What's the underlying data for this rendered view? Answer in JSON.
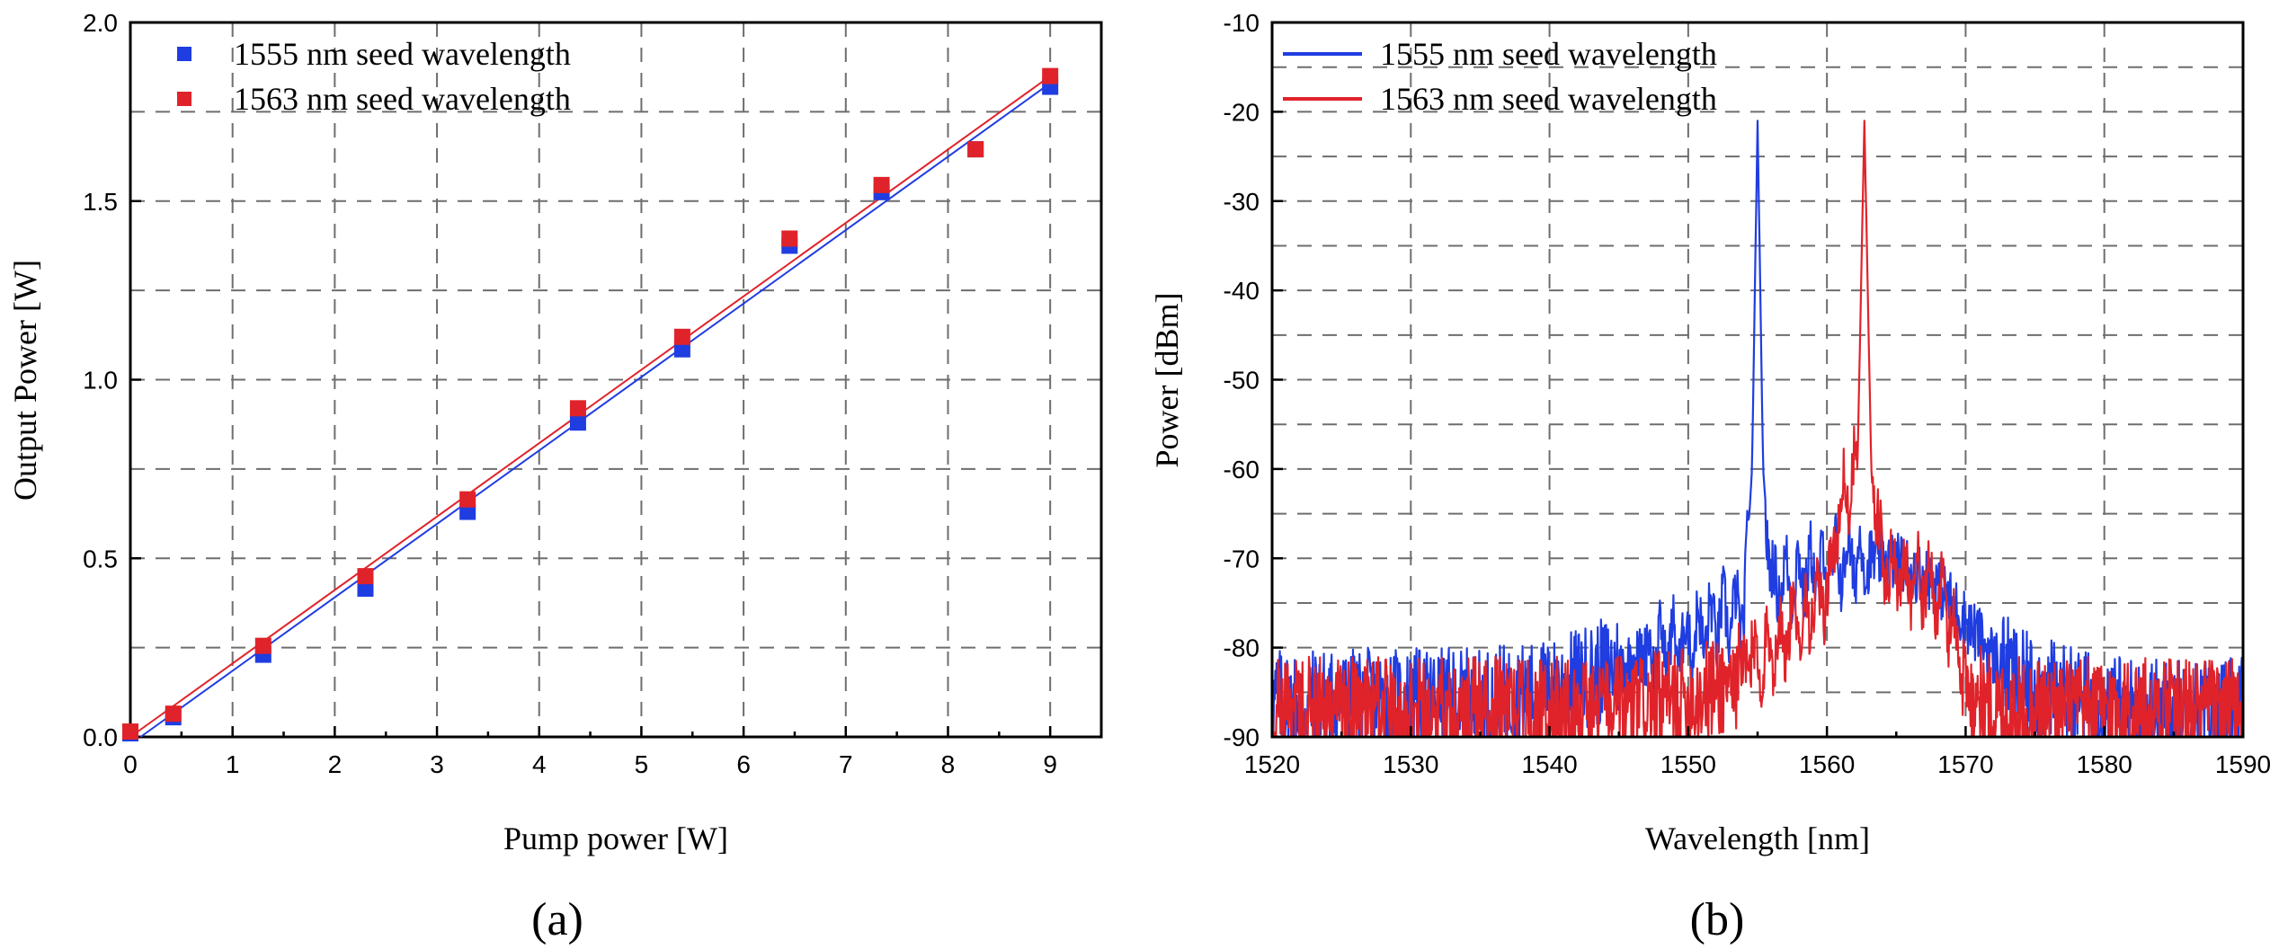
{
  "colors": {
    "blue": "#1f3de0",
    "red": "#e0232a"
  },
  "chart_data": [
    {
      "type": "scatter",
      "panel_label": "(a)",
      "xlabel": "Pump power [W]",
      "ylabel": "Output Power [W]",
      "xlim": [
        0,
        9.5
      ],
      "ylim": [
        0,
        2.0
      ],
      "xticks": [
        0,
        1,
        2,
        3,
        4,
        5,
        6,
        7,
        8,
        9
      ],
      "xtick_labels": [
        "0",
        "1",
        "2",
        "3",
        "4",
        "5",
        "6",
        "7",
        "8",
        "9"
      ],
      "yticks": [
        0,
        0.5,
        1.0,
        1.5,
        2.0
      ],
      "ytick_labels": [
        "0.0",
        "0.5",
        "1.0",
        "1.5",
        "2.0"
      ],
      "grid": true,
      "legend_position": "top-left",
      "series": [
        {
          "name": "1555 nm seed wavelength",
          "color": "#1f3de0",
          "marker": "square",
          "x": [
            0.0,
            0.42,
            1.3,
            2.3,
            3.3,
            4.38,
            5.4,
            6.45,
            7.35,
            8.27,
            9.0
          ],
          "y": [
            0.01,
            0.055,
            0.23,
            0.415,
            0.63,
            0.88,
            1.085,
            1.375,
            1.525,
            1.645,
            1.82
          ],
          "fit": {
            "x": [
              0.1,
              9.0
            ],
            "y": [
              0.0,
              1.83
            ]
          }
        },
        {
          "name": "1563 nm seed wavelength",
          "color": "#e0232a",
          "marker": "square",
          "x": [
            0.0,
            0.42,
            1.3,
            2.3,
            3.3,
            4.38,
            5.4,
            6.45,
            7.35,
            8.27,
            9.0
          ],
          "y": [
            0.015,
            0.065,
            0.255,
            0.45,
            0.665,
            0.92,
            1.12,
            1.395,
            1.545,
            1.645,
            1.85
          ],
          "fit": {
            "x": [
              0.0,
              9.0
            ],
            "y": [
              0.0,
              1.85
            ]
          }
        }
      ]
    },
    {
      "type": "line",
      "panel_label": "(b)",
      "xlabel": "Wavelength [nm]",
      "ylabel": "Power [dBm]",
      "xlim": [
        1520,
        1590
      ],
      "ylim": [
        -90,
        -10
      ],
      "xticks": [
        1520,
        1530,
        1540,
        1550,
        1560,
        1570,
        1580,
        1590
      ],
      "xtick_labels": [
        "1520",
        "1530",
        "1540",
        "1550",
        "1560",
        "1570",
        "1580",
        "1590"
      ],
      "yticks": [
        -90,
        -80,
        -70,
        -60,
        -50,
        -40,
        -30,
        -20,
        -10
      ],
      "ytick_labels": [
        "-90",
        "-80",
        "-70",
        "-60",
        "-50",
        "-40",
        "-30",
        "-20",
        "-10"
      ],
      "grid": true,
      "legend_position": "top-left",
      "series": [
        {
          "name": "1555 nm seed wavelength",
          "color": "#1f3de0",
          "peak_wavelength": 1555.0,
          "peak_power": -21,
          "x": [
            1520,
            1525,
            1530,
            1535,
            1540,
            1545,
            1550,
            1552,
            1554,
            1554.6,
            1555.0,
            1555.4,
            1556,
            1558,
            1560,
            1562,
            1564,
            1566,
            1568,
            1570,
            1572,
            1574,
            1578,
            1582,
            1586,
            1590
          ],
          "y": [
            -86,
            -86,
            -86,
            -86,
            -85,
            -82,
            -79,
            -77,
            -76,
            -60,
            -21,
            -60,
            -73,
            -72,
            -71,
            -70,
            -70,
            -71,
            -73,
            -77,
            -81,
            -84,
            -86,
            -87,
            -87,
            -87
          ]
        },
        {
          "name": "1563 nm seed wavelength",
          "color": "#e0232a",
          "peak_wavelength": 1562.7,
          "peak_power": -21,
          "x": [
            1520,
            1525,
            1530,
            1535,
            1540,
            1545,
            1550,
            1554,
            1556,
            1558,
            1560,
            1561,
            1562.2,
            1562.7,
            1563.2,
            1564,
            1566,
            1568,
            1569,
            1570,
            1572,
            1575,
            1580,
            1585,
            1590
          ],
          "y": [
            -87,
            -87,
            -87,
            -87,
            -87,
            -87,
            -86,
            -83,
            -80,
            -77,
            -74,
            -64,
            -60,
            -21,
            -60,
            -71,
            -72,
            -74,
            -77,
            -84,
            -87,
            -87,
            -87,
            -87,
            -87
          ]
        }
      ]
    }
  ]
}
